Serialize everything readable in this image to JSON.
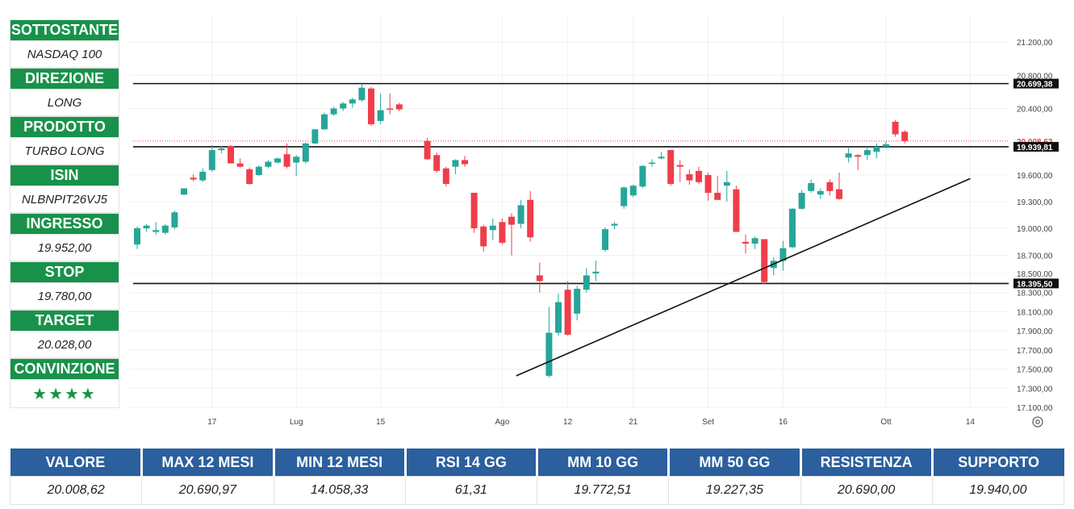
{
  "sidebar": [
    {
      "label": "SOTTOSTANTE",
      "value": "NASDAQ 100"
    },
    {
      "label": "DIREZIONE",
      "value": "LONG"
    },
    {
      "label": "PRODOTTO",
      "value": "TURBO LONG"
    },
    {
      "label": "ISIN",
      "value": "NLBNPIT26VJ5"
    },
    {
      "label": "INGRESSO",
      "value": "19.952,00"
    },
    {
      "label": "STOP",
      "value": "19.780,00"
    },
    {
      "label": "TARGET",
      "value": "20.028,00"
    },
    {
      "label": "CONVINZIONE",
      "value": "★★★★"
    }
  ],
  "colors": {
    "green": "#18924a",
    "blue": "#2b5f9e",
    "up": "#26a69a",
    "down": "#ef3e4a"
  },
  "stats": {
    "headers": [
      "VALORE",
      "MAX 12 MESI",
      "MIN 12 MESI",
      "RSI 14 GG",
      "MM 10 GG",
      "MM 50 GG",
      "RESISTENZA",
      "SUPPORTO"
    ],
    "values": [
      "20.008,62",
      "20.690,97",
      "14.058,33",
      "61,31",
      "19.772,51",
      "19.227,35",
      "20.690,00",
      "19.940,00"
    ]
  },
  "chart_data": {
    "type": "candlestick",
    "y_ticks": [
      {
        "v": 21200,
        "label": "21.200,00"
      },
      {
        "v": 20800,
        "label": "20.800,00"
      },
      {
        "v": 20400,
        "label": "20.400,00"
      },
      {
        "v": 19600,
        "label": "19.600,00"
      },
      {
        "v": 19300,
        "label": "19.300,00"
      },
      {
        "v": 19000,
        "label": "19.000,00"
      },
      {
        "v": 18700,
        "label": "18.700,00"
      },
      {
        "v": 18500,
        "label": "18.500,00"
      },
      {
        "v": 18300,
        "label": "18.300,00"
      },
      {
        "v": 18100,
        "label": "18.100,00"
      },
      {
        "v": 17900,
        "label": "17.900,00"
      },
      {
        "v": 17700,
        "label": "17.700,00"
      },
      {
        "v": 17500,
        "label": "17.500,00"
      },
      {
        "v": 17300,
        "label": "17.300,00"
      },
      {
        "v": 17100,
        "label": "17.100,00"
      }
    ],
    "x_ticks": [
      {
        "d": 8,
        "label": "17"
      },
      {
        "d": 17,
        "label": "Lug"
      },
      {
        "d": 26,
        "label": "15"
      },
      {
        "d": 39,
        "label": "Ago"
      },
      {
        "d": 46,
        "label": "12"
      },
      {
        "d": 53,
        "label": "21"
      },
      {
        "d": 61,
        "label": "Set"
      },
      {
        "d": 69,
        "label": "16"
      },
      {
        "d": 80,
        "label": "Ott"
      },
      {
        "d": 89,
        "label": "14"
      }
    ],
    "price_labels": [
      {
        "v": 20699.38,
        "label": "20.699,38",
        "style": "dark"
      },
      {
        "v": 20008.62,
        "label": "20.008,62",
        "style": "red"
      },
      {
        "v": 19939.81,
        "label": "19.939,81",
        "style": "dark"
      },
      {
        "v": 18395.5,
        "label": "18.395,50",
        "style": "dark"
      }
    ],
    "horizontal_lines": [
      20699.38,
      19939.81,
      18395.5
    ],
    "current_price": 20008.62,
    "trendline": [
      {
        "d": 40.5,
        "v": 17430
      },
      {
        "d": 89,
        "v": 19560
      }
    ],
    "candles": [
      {
        "d": 0,
        "o": 18820,
        "h": 19020,
        "l": 18770,
        "c": 19000
      },
      {
        "d": 1,
        "o": 19000,
        "h": 19050,
        "l": 18960,
        "c": 19030
      },
      {
        "d": 2,
        "o": 18960,
        "h": 19070,
        "l": 18930,
        "c": 18980
      },
      {
        "d": 3,
        "o": 18950,
        "h": 19050,
        "l": 18930,
        "c": 19030
      },
      {
        "d": 4,
        "o": 19010,
        "h": 19200,
        "l": 18990,
        "c": 19180
      },
      {
        "d": 5,
        "o": 19380,
        "h": 19450,
        "l": 19370,
        "c": 19450
      },
      {
        "d": 6,
        "o": 19570,
        "h": 19610,
        "l": 19530,
        "c": 19550
      },
      {
        "d": 7,
        "o": 19540,
        "h": 19680,
        "l": 19520,
        "c": 19640
      },
      {
        "d": 8,
        "o": 19660,
        "h": 19960,
        "l": 19640,
        "c": 19900
      },
      {
        "d": 9,
        "o": 19900,
        "h": 19950,
        "l": 19860,
        "c": 19920
      },
      {
        "d": 10,
        "o": 19950,
        "h": 19960,
        "l": 19740,
        "c": 19740
      },
      {
        "d": 11,
        "o": 19740,
        "h": 19800,
        "l": 19690,
        "c": 19700
      },
      {
        "d": 12,
        "o": 19670,
        "h": 19690,
        "l": 19490,
        "c": 19500
      },
      {
        "d": 13,
        "o": 19600,
        "h": 19720,
        "l": 19590,
        "c": 19700
      },
      {
        "d": 14,
        "o": 19700,
        "h": 19780,
        "l": 19680,
        "c": 19760
      },
      {
        "d": 15,
        "o": 19750,
        "h": 19810,
        "l": 19740,
        "c": 19800
      },
      {
        "d": 16,
        "o": 19850,
        "h": 19980,
        "l": 19680,
        "c": 19700
      },
      {
        "d": 17,
        "o": 19750,
        "h": 19840,
        "l": 19590,
        "c": 19820
      },
      {
        "d": 18,
        "o": 19760,
        "h": 19990,
        "l": 19740,
        "c": 19980
      },
      {
        "d": 19,
        "o": 19980,
        "h": 20150,
        "l": 19970,
        "c": 20150
      },
      {
        "d": 20,
        "o": 20150,
        "h": 20350,
        "l": 20140,
        "c": 20330
      },
      {
        "d": 21,
        "o": 20330,
        "h": 20420,
        "l": 20310,
        "c": 20400
      },
      {
        "d": 22,
        "o": 20400,
        "h": 20480,
        "l": 20370,
        "c": 20460
      },
      {
        "d": 23,
        "o": 20460,
        "h": 20530,
        "l": 20410,
        "c": 20510
      },
      {
        "d": 24,
        "o": 20500,
        "h": 20700,
        "l": 20480,
        "c": 20650
      },
      {
        "d": 25,
        "o": 20640,
        "h": 20660,
        "l": 20190,
        "c": 20210
      },
      {
        "d": 26,
        "o": 20250,
        "h": 20580,
        "l": 20210,
        "c": 20380
      },
      {
        "d": 27,
        "o": 20400,
        "h": 20580,
        "l": 20330,
        "c": 20390
      },
      {
        "d": 28,
        "o": 20450,
        "h": 20470,
        "l": 20370,
        "c": 20390
      },
      {
        "d": 31,
        "o": 20010,
        "h": 20050,
        "l": 19780,
        "c": 19790
      },
      {
        "d": 32,
        "o": 19840,
        "h": 19870,
        "l": 19630,
        "c": 19650
      },
      {
        "d": 33,
        "o": 19680,
        "h": 19700,
        "l": 19470,
        "c": 19500
      },
      {
        "d": 34,
        "o": 19700,
        "h": 19790,
        "l": 19610,
        "c": 19780
      },
      {
        "d": 35,
        "o": 19780,
        "h": 19830,
        "l": 19700,
        "c": 19730
      },
      {
        "d": 36,
        "o": 19400,
        "h": 19400,
        "l": 18950,
        "c": 19000
      },
      {
        "d": 37,
        "o": 19020,
        "h": 19040,
        "l": 18740,
        "c": 18800
      },
      {
        "d": 38,
        "o": 18980,
        "h": 19110,
        "l": 18870,
        "c": 19030
      },
      {
        "d": 39,
        "o": 19070,
        "h": 19110,
        "l": 18820,
        "c": 18840
      },
      {
        "d": 40,
        "o": 19130,
        "h": 19170,
        "l": 18700,
        "c": 19040
      },
      {
        "d": 41,
        "o": 19050,
        "h": 19320,
        "l": 19000,
        "c": 19260
      },
      {
        "d": 42,
        "o": 19320,
        "h": 19420,
        "l": 18850,
        "c": 18900
      },
      {
        "d": 43,
        "o": 18480,
        "h": 18620,
        "l": 18300,
        "c": 18420
      },
      {
        "d": 44,
        "o": 17430,
        "h": 18150,
        "l": 17410,
        "c": 17880
      },
      {
        "d": 45,
        "o": 17880,
        "h": 18290,
        "l": 17850,
        "c": 18200
      },
      {
        "d": 46,
        "o": 18330,
        "h": 18420,
        "l": 17850,
        "c": 17860
      },
      {
        "d": 47,
        "o": 18080,
        "h": 18370,
        "l": 18010,
        "c": 18340
      },
      {
        "d": 48,
        "o": 18330,
        "h": 18560,
        "l": 18300,
        "c": 18480
      },
      {
        "d": 49,
        "o": 18500,
        "h": 18640,
        "l": 18420,
        "c": 18520
      },
      {
        "d": 50,
        "o": 18760,
        "h": 19010,
        "l": 18740,
        "c": 18990
      },
      {
        "d": 51,
        "o": 19030,
        "h": 19070,
        "l": 18990,
        "c": 19050
      },
      {
        "d": 52,
        "o": 19250,
        "h": 19470,
        "l": 19220,
        "c": 19460
      },
      {
        "d": 53,
        "o": 19370,
        "h": 19490,
        "l": 19350,
        "c": 19480
      },
      {
        "d": 54,
        "o": 19470,
        "h": 19720,
        "l": 19450,
        "c": 19710
      },
      {
        "d": 55,
        "o": 19740,
        "h": 19790,
        "l": 19700,
        "c": 19750
      },
      {
        "d": 56,
        "o": 19800,
        "h": 19880,
        "l": 19790,
        "c": 19820
      },
      {
        "d": 57,
        "o": 19900,
        "h": 19900,
        "l": 19480,
        "c": 19500
      },
      {
        "d": 58,
        "o": 19720,
        "h": 19780,
        "l": 19520,
        "c": 19700
      },
      {
        "d": 59,
        "o": 19610,
        "h": 19670,
        "l": 19490,
        "c": 19540
      },
      {
        "d": 60,
        "o": 19650,
        "h": 19700,
        "l": 19500,
        "c": 19520
      },
      {
        "d": 61,
        "o": 19600,
        "h": 19630,
        "l": 19310,
        "c": 19400
      },
      {
        "d": 62,
        "o": 19400,
        "h": 19590,
        "l": 19340,
        "c": 19320
      },
      {
        "d": 63,
        "o": 19480,
        "h": 19650,
        "l": 19300,
        "c": 19520
      },
      {
        "d": 64,
        "o": 19440,
        "h": 19480,
        "l": 18960,
        "c": 18960
      },
      {
        "d": 65,
        "o": 18850,
        "h": 18930,
        "l": 18720,
        "c": 18830
      },
      {
        "d": 66,
        "o": 18830,
        "h": 18910,
        "l": 18770,
        "c": 18890
      },
      {
        "d": 67,
        "o": 18880,
        "h": 18880,
        "l": 18390,
        "c": 18410
      },
      {
        "d": 68,
        "o": 18560,
        "h": 18680,
        "l": 18480,
        "c": 18640
      },
      {
        "d": 69,
        "o": 18640,
        "h": 18860,
        "l": 18530,
        "c": 18780
      },
      {
        "d": 70,
        "o": 18790,
        "h": 19230,
        "l": 18780,
        "c": 19220
      },
      {
        "d": 71,
        "o": 19220,
        "h": 19430,
        "l": 19210,
        "c": 19400
      },
      {
        "d": 72,
        "o": 19420,
        "h": 19550,
        "l": 19400,
        "c": 19510
      },
      {
        "d": 73,
        "o": 19380,
        "h": 19450,
        "l": 19330,
        "c": 19420
      },
      {
        "d": 74,
        "o": 19520,
        "h": 19550,
        "l": 19370,
        "c": 19420
      },
      {
        "d": 75,
        "o": 19440,
        "h": 19630,
        "l": 19320,
        "c": 19330
      },
      {
        "d": 76,
        "o": 19810,
        "h": 19940,
        "l": 19750,
        "c": 19860
      },
      {
        "d": 77,
        "o": 19840,
        "h": 19850,
        "l": 19660,
        "c": 19820
      },
      {
        "d": 78,
        "o": 19840,
        "h": 19940,
        "l": 19780,
        "c": 19900
      },
      {
        "d": 79,
        "o": 19880,
        "h": 19980,
        "l": 19800,
        "c": 19940
      },
      {
        "d": 80,
        "o": 19940,
        "h": 20010,
        "l": 19920,
        "c": 19970
      },
      {
        "d": 81,
        "o": 20240,
        "h": 20260,
        "l": 20060,
        "c": 20090
      },
      {
        "d": 82,
        "o": 20120,
        "h": 20140,
        "l": 19980,
        "c": 20010
      }
    ]
  }
}
